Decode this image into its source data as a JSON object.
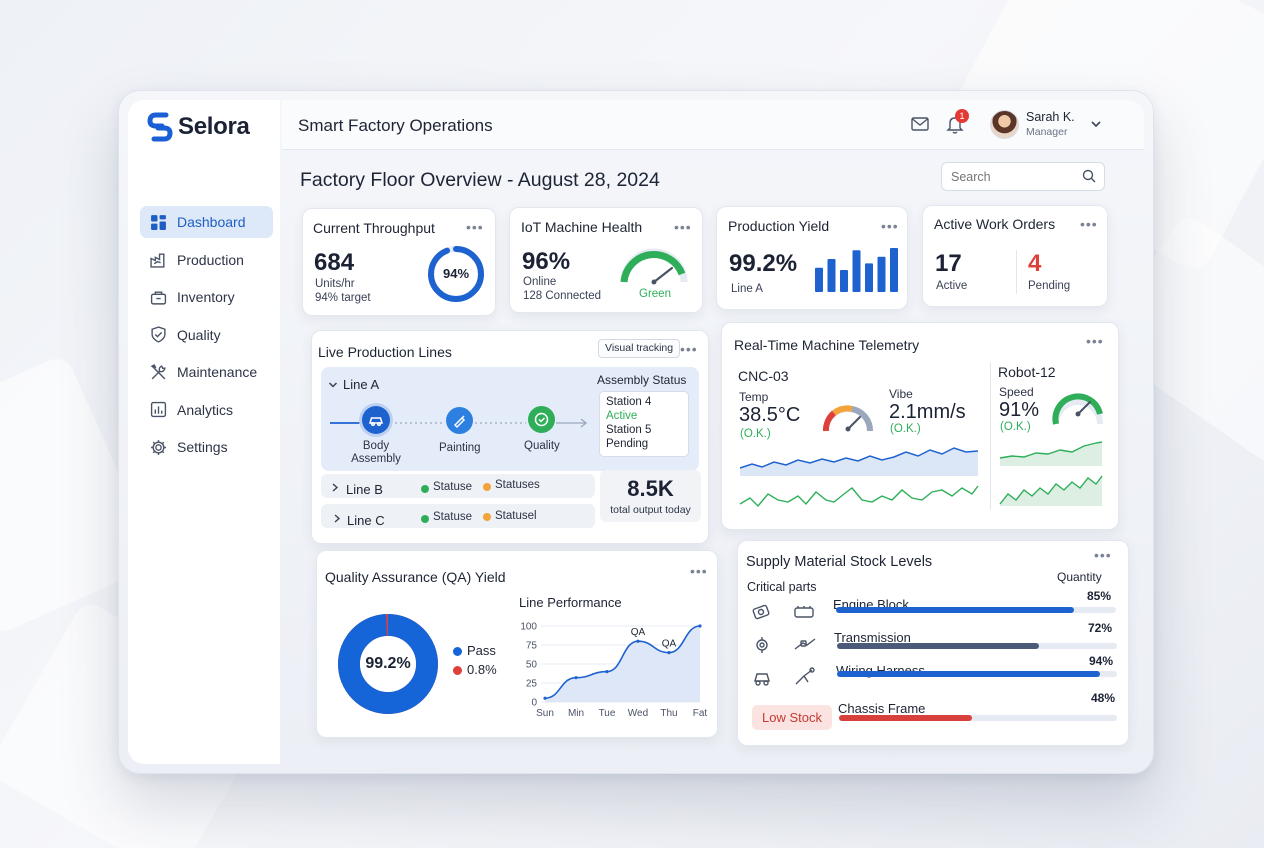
{
  "brand": {
    "name": "Selora"
  },
  "sidebar": {
    "items": [
      {
        "label": "Dashboard",
        "icon": "dashboard-icon",
        "active": true
      },
      {
        "label": "Production",
        "icon": "production-icon"
      },
      {
        "label": "Inventory",
        "icon": "inventory-icon"
      },
      {
        "label": "Quality",
        "icon": "quality-shield-icon"
      },
      {
        "label": "Maintenance",
        "icon": "maintenance-tools-icon"
      },
      {
        "label": "Analytics",
        "icon": "analytics-icon"
      },
      {
        "label": "Settings",
        "icon": "gear-icon"
      }
    ]
  },
  "header": {
    "title": "Smart Factory Operations",
    "notifications": "1",
    "user": {
      "name": "Sarah K.",
      "role": "Manager"
    }
  },
  "page": {
    "heading": "Factory Floor Overview - August 28, 2024",
    "search_placeholder": "Search"
  },
  "throughput": {
    "title": "Current Throughput",
    "value": "684",
    "unit": "Units/hr",
    "target": "94% target",
    "gauge_label": "94%",
    "gauge_fraction": 0.94
  },
  "iot": {
    "title": "IoT Machine Health",
    "value": "96%",
    "online": "Online",
    "connected": "128 Connected",
    "status": "Green"
  },
  "yield": {
    "title": "Production Yield",
    "value": "99.2%",
    "line": "Line A",
    "bars": [
      0.55,
      0.75,
      0.5,
      0.95,
      0.65,
      0.8,
      1.0
    ]
  },
  "work_orders": {
    "title": "Active Work Orders",
    "active_value": "17",
    "active_label": "Active",
    "pending_value": "4",
    "pending_label": "Pending"
  },
  "lines": {
    "title": "Live Production Lines",
    "tag": "Visual tracking",
    "line_a": "Line A",
    "steps": [
      {
        "label_1": "Body",
        "label_2": "Assembly"
      },
      {
        "label_1": "Painting"
      },
      {
        "label_1": "Quality"
      }
    ],
    "assembly": {
      "title": "Assembly Status",
      "s1": "Station 4",
      "s1_status": "Active",
      "s2": "Station 5",
      "s2_status": "Pending"
    },
    "line_b": {
      "name": "Line B",
      "status_1": "Statuse",
      "status_2": "Statuses"
    },
    "line_c": {
      "name": "Line C",
      "status_1": "Statuse",
      "status_2": "Statusel"
    },
    "output": {
      "value": "8.5K",
      "label": "total output today"
    }
  },
  "telemetry": {
    "title": "Real-Time Machine Telemetry",
    "cnc": {
      "name": "CNC-03",
      "temp_label": "Temp",
      "temp_value": "38.5°C",
      "temp_ok": "(O.K.)",
      "vibe_label": "Vibe",
      "vibe_value": "2.1mm/s",
      "vibe_ok": "(O.K.)"
    },
    "robot": {
      "name": "Robot-12",
      "speed_label": "Speed",
      "speed_value": "91%",
      "speed_ok": "(O.K.)"
    }
  },
  "qa": {
    "title": "Quality Assurance (QA) Yield",
    "donut_label": "99.2%",
    "pass_label": "Pass",
    "fail_value": "0.8%",
    "pass_fraction": 0.992,
    "colors": {
      "pass": "#1565d8",
      "fail": "#e0403a"
    }
  },
  "chart_data": {
    "type": "area",
    "title": "Line Performance",
    "categories": [
      "Sun",
      "Min",
      "Tue",
      "Wed",
      "Thu",
      "Fat"
    ],
    "values": [
      5,
      32,
      40,
      80,
      65,
      100
    ],
    "ylim": [
      0,
      100
    ],
    "yticks": [
      "100",
      "75",
      "50",
      "25",
      "0"
    ],
    "annotations": [
      {
        "text": "QA",
        "category": "Wed"
      },
      {
        "text": "QA",
        "category": "Thu"
      }
    ],
    "grid": true
  },
  "stock": {
    "title": "Supply Material Stock Levels",
    "subtitle": "Critical parts",
    "qty_label": "Quantity",
    "low_stock": "Low Stock",
    "items": [
      {
        "name": "Engine Block",
        "pct": "85%",
        "fraction": 0.85,
        "color": "#1e62d0"
      },
      {
        "name": "Transmission",
        "pct": "72%",
        "fraction": 0.72,
        "color": "#4a5a78"
      },
      {
        "name": "Wiring Harness",
        "pct": "94%",
        "fraction": 0.94,
        "color": "#1e62d0"
      },
      {
        "name": "Chassis Frame",
        "pct": "48%",
        "fraction": 0.48,
        "color": "#d8403b"
      }
    ]
  }
}
